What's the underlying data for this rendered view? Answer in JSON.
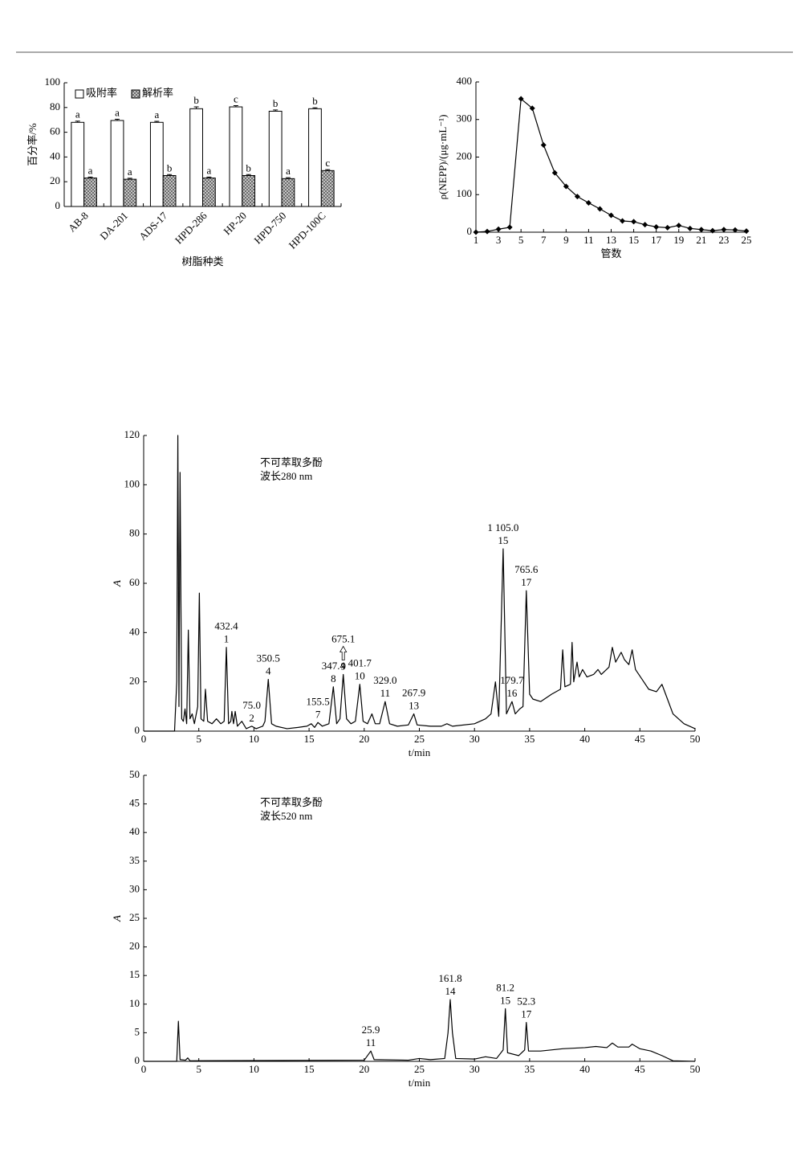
{
  "chart_data": [
    {
      "type": "bar",
      "categories": [
        "AB-8",
        "DA-201",
        "ADS-17",
        "HPD-286",
        "HP-20",
        "HPD-750",
        "HPD-100C"
      ],
      "series": [
        {
          "name": "吸附率",
          "color": "#ffffff",
          "values": [
            68,
            69.5,
            68,
            79,
            80.5,
            77,
            79
          ],
          "errors": [
            1,
            1,
            0.8,
            1.5,
            1,
            1,
            0.8
          ],
          "letters": [
            "a",
            "a",
            "a",
            "b",
            "c",
            "b",
            "b"
          ]
        },
        {
          "name": "解析率",
          "color": "#d0d0d0",
          "pattern": "crosshatch",
          "values": [
            23,
            22,
            25,
            23,
            25,
            22.5,
            29
          ],
          "errors": [
            0.8,
            0.8,
            0.8,
            0.8,
            0.8,
            0.8,
            0.8
          ],
          "letters": [
            "a",
            "a",
            "b",
            "a",
            "b",
            "a",
            "c"
          ]
        }
      ],
      "ylim": [
        0,
        100
      ],
      "yticks": [
        0,
        20,
        40,
        60,
        80,
        100
      ],
      "ylabel": "百分率/%",
      "xlabel": "树脂种类",
      "legend": "top-left"
    },
    {
      "type": "line",
      "x": [
        1,
        2,
        3,
        4,
        5,
        6,
        7,
        8,
        9,
        10,
        11,
        12,
        13,
        14,
        15,
        16,
        17,
        18,
        19,
        20,
        21,
        22,
        23,
        24,
        25
      ],
      "values": [
        0,
        2,
        8,
        13,
        355,
        330,
        232,
        158,
        122,
        95,
        78,
        62,
        45,
        30,
        28,
        20,
        14,
        12,
        18,
        10,
        7,
        4,
        7,
        6,
        3
      ],
      "color": "#000000",
      "marker": "diamond",
      "xlim": [
        1,
        25
      ],
      "xticks": [
        1,
        3,
        5,
        7,
        9,
        11,
        13,
        15,
        17,
        19,
        21,
        23,
        25
      ],
      "ylim": [
        0,
        400
      ],
      "yticks": [
        0,
        100,
        200,
        300,
        400
      ],
      "ylabel": "ρ(NEPP)/(μg·mL⁻¹)",
      "xlabel": "管数"
    },
    {
      "type": "chromatogram",
      "notes": [
        "不可萃取多酚",
        "波长280 nm"
      ],
      "x": [
        0,
        2.8,
        3.0,
        3.1,
        3.2,
        3.3,
        3.45,
        3.6,
        3.75,
        3.9,
        4.05,
        4.2,
        4.4,
        4.6,
        4.9,
        5.05,
        5.2,
        5.45,
        5.6,
        5.8,
        6.2,
        6.6,
        7.0,
        7.3,
        7.5,
        7.7,
        7.9,
        8.0,
        8.15,
        8.3,
        8.5,
        8.9,
        9.3,
        9.8,
        10.2,
        10.8,
        11.0,
        11.3,
        11.6,
        12,
        13,
        14,
        14.8,
        15.2,
        15.5,
        15.8,
        16.2,
        16.8,
        17.2,
        17.5,
        17.8,
        18.1,
        18.4,
        18.8,
        19.2,
        19.6,
        19.9,
        20.3,
        20.7,
        21.0,
        21.4,
        21.9,
        22.3,
        23,
        24,
        24.5,
        24.8,
        26,
        27,
        27.5,
        28,
        30,
        31,
        31.5,
        31.9,
        32.2,
        32.6,
        32.9,
        33.2,
        33.4,
        33.7,
        34.1,
        34.4,
        34.7,
        35.0,
        35.3,
        36,
        37,
        37.8,
        38.0,
        38.2,
        38.7,
        38.85,
        39.0,
        39.3,
        39.5,
        39.8,
        40.2,
        40.8,
        41.2,
        41.5,
        42.2,
        42.5,
        42.8,
        43.3,
        43.6,
        44.0,
        44.3,
        44.6,
        45.2,
        45.8,
        46.5,
        47.0,
        47.5,
        48,
        49,
        50
      ],
      "values": [
        0,
        0,
        20,
        120,
        10,
        105,
        5,
        4,
        9,
        3,
        41,
        5,
        7,
        3,
        10,
        56,
        5,
        4,
        17,
        4,
        3,
        5,
        3,
        4,
        34,
        3,
        4,
        8,
        3,
        8,
        2,
        4,
        1,
        2,
        1,
        2,
        4,
        21,
        3,
        2,
        1,
        1.5,
        2,
        3,
        1.5,
        3.5,
        2,
        3,
        18,
        3,
        5,
        23,
        5,
        3,
        4,
        19,
        4,
        3,
        7,
        3,
        3,
        12,
        3,
        2,
        2.5,
        7,
        2.5,
        2,
        2,
        3,
        2,
        3,
        5,
        7,
        20,
        6,
        74,
        7,
        10,
        12,
        7,
        9,
        10,
        57,
        15,
        13,
        12,
        15,
        17,
        33,
        18,
        19,
        36,
        20,
        28,
        22,
        25,
        22,
        23,
        25,
        23,
        26,
        34,
        28,
        32,
        29,
        27,
        33,
        25,
        21,
        17,
        16,
        19,
        13,
        7,
        3,
        1
      ],
      "color": "#000000",
      "peaks": [
        {
          "x": 7.5,
          "y": 34,
          "label": "432.4",
          "number": "1"
        },
        {
          "x": 9.8,
          "y": 2,
          "label": "75.0",
          "number": "2"
        },
        {
          "x": 11.3,
          "y": 21,
          "label": "350.5",
          "number": "4"
        },
        {
          "x": 15.8,
          "y": 3.5,
          "label": "155.5",
          "number": "7"
        },
        {
          "x": 17.2,
          "y": 18,
          "label": "347.4",
          "number": "8"
        },
        {
          "x": 18.1,
          "y": 23,
          "label": "675.1",
          "number": "9",
          "arrow": true
        },
        {
          "x": 19.6,
          "y": 19,
          "label": "401.7",
          "number": "10"
        },
        {
          "x": 21.9,
          "y": 12,
          "label": "329.0",
          "number": "11"
        },
        {
          "x": 24.5,
          "y": 7,
          "label": "267.9",
          "number": "13"
        },
        {
          "x": 32.6,
          "y": 74,
          "label": "1 105.0",
          "number": "15"
        },
        {
          "x": 33.4,
          "y": 12,
          "label": "179.7",
          "number": "16"
        },
        {
          "x": 34.7,
          "y": 57,
          "label": "765.6",
          "number": "17"
        }
      ],
      "xlim": [
        0,
        50
      ],
      "xticks": [
        0,
        5,
        10,
        15,
        20,
        25,
        30,
        35,
        40,
        45,
        50
      ],
      "ylim": [
        0,
        120
      ],
      "yticks": [
        0,
        20,
        40,
        60,
        80,
        100,
        120
      ],
      "ylabel": "A",
      "xlabel": "t/min"
    },
    {
      "type": "chromatogram",
      "notes": [
        "不可萃取多酚",
        "波长520 nm"
      ],
      "x": [
        0,
        3.0,
        3.15,
        3.3,
        3.8,
        4.0,
        4.2,
        20,
        20.6,
        20.9,
        24,
        25,
        26,
        27.3,
        27.6,
        27.8,
        28.0,
        28.3,
        30,
        31,
        32,
        32.6,
        32.8,
        33.0,
        34,
        34.55,
        34.7,
        34.9,
        36,
        38,
        40,
        41,
        42,
        42.5,
        43,
        44,
        44.3,
        45,
        46,
        47,
        48,
        50
      ],
      "values": [
        0,
        0,
        7,
        0.3,
        0.2,
        0.6,
        0.1,
        0.2,
        1.8,
        0.3,
        0.2,
        0.5,
        0.3,
        0.5,
        5,
        10.8,
        5,
        0.5,
        0.4,
        0.8,
        0.5,
        2,
        9.2,
        1.5,
        1,
        2,
        6.8,
        1.8,
        1.8,
        2.2,
        2.4,
        2.6,
        2.4,
        3.2,
        2.5,
        2.5,
        3,
        2.2,
        1.8,
        1.0,
        0.1,
        0
      ],
      "color": "#000000",
      "peaks": [
        {
          "x": 20.6,
          "y": 1.8,
          "label": "25.9",
          "number": "11"
        },
        {
          "x": 27.8,
          "y": 10.8,
          "label": "161.8",
          "number": "14"
        },
        {
          "x": 32.8,
          "y": 9.2,
          "label": "81.2",
          "number": "15"
        },
        {
          "x": 34.7,
          "y": 6.8,
          "label": "52.3",
          "number": "17"
        }
      ],
      "xlim": [
        0,
        50
      ],
      "xticks": [
        0,
        5,
        10,
        15,
        20,
        25,
        30,
        35,
        40,
        45,
        50
      ],
      "ylim": [
        0,
        50
      ],
      "yticks": [
        0,
        5,
        10,
        15,
        20,
        25,
        30,
        35,
        40,
        45,
        50
      ],
      "ylabel": "A",
      "xlabel": "t/min"
    }
  ]
}
